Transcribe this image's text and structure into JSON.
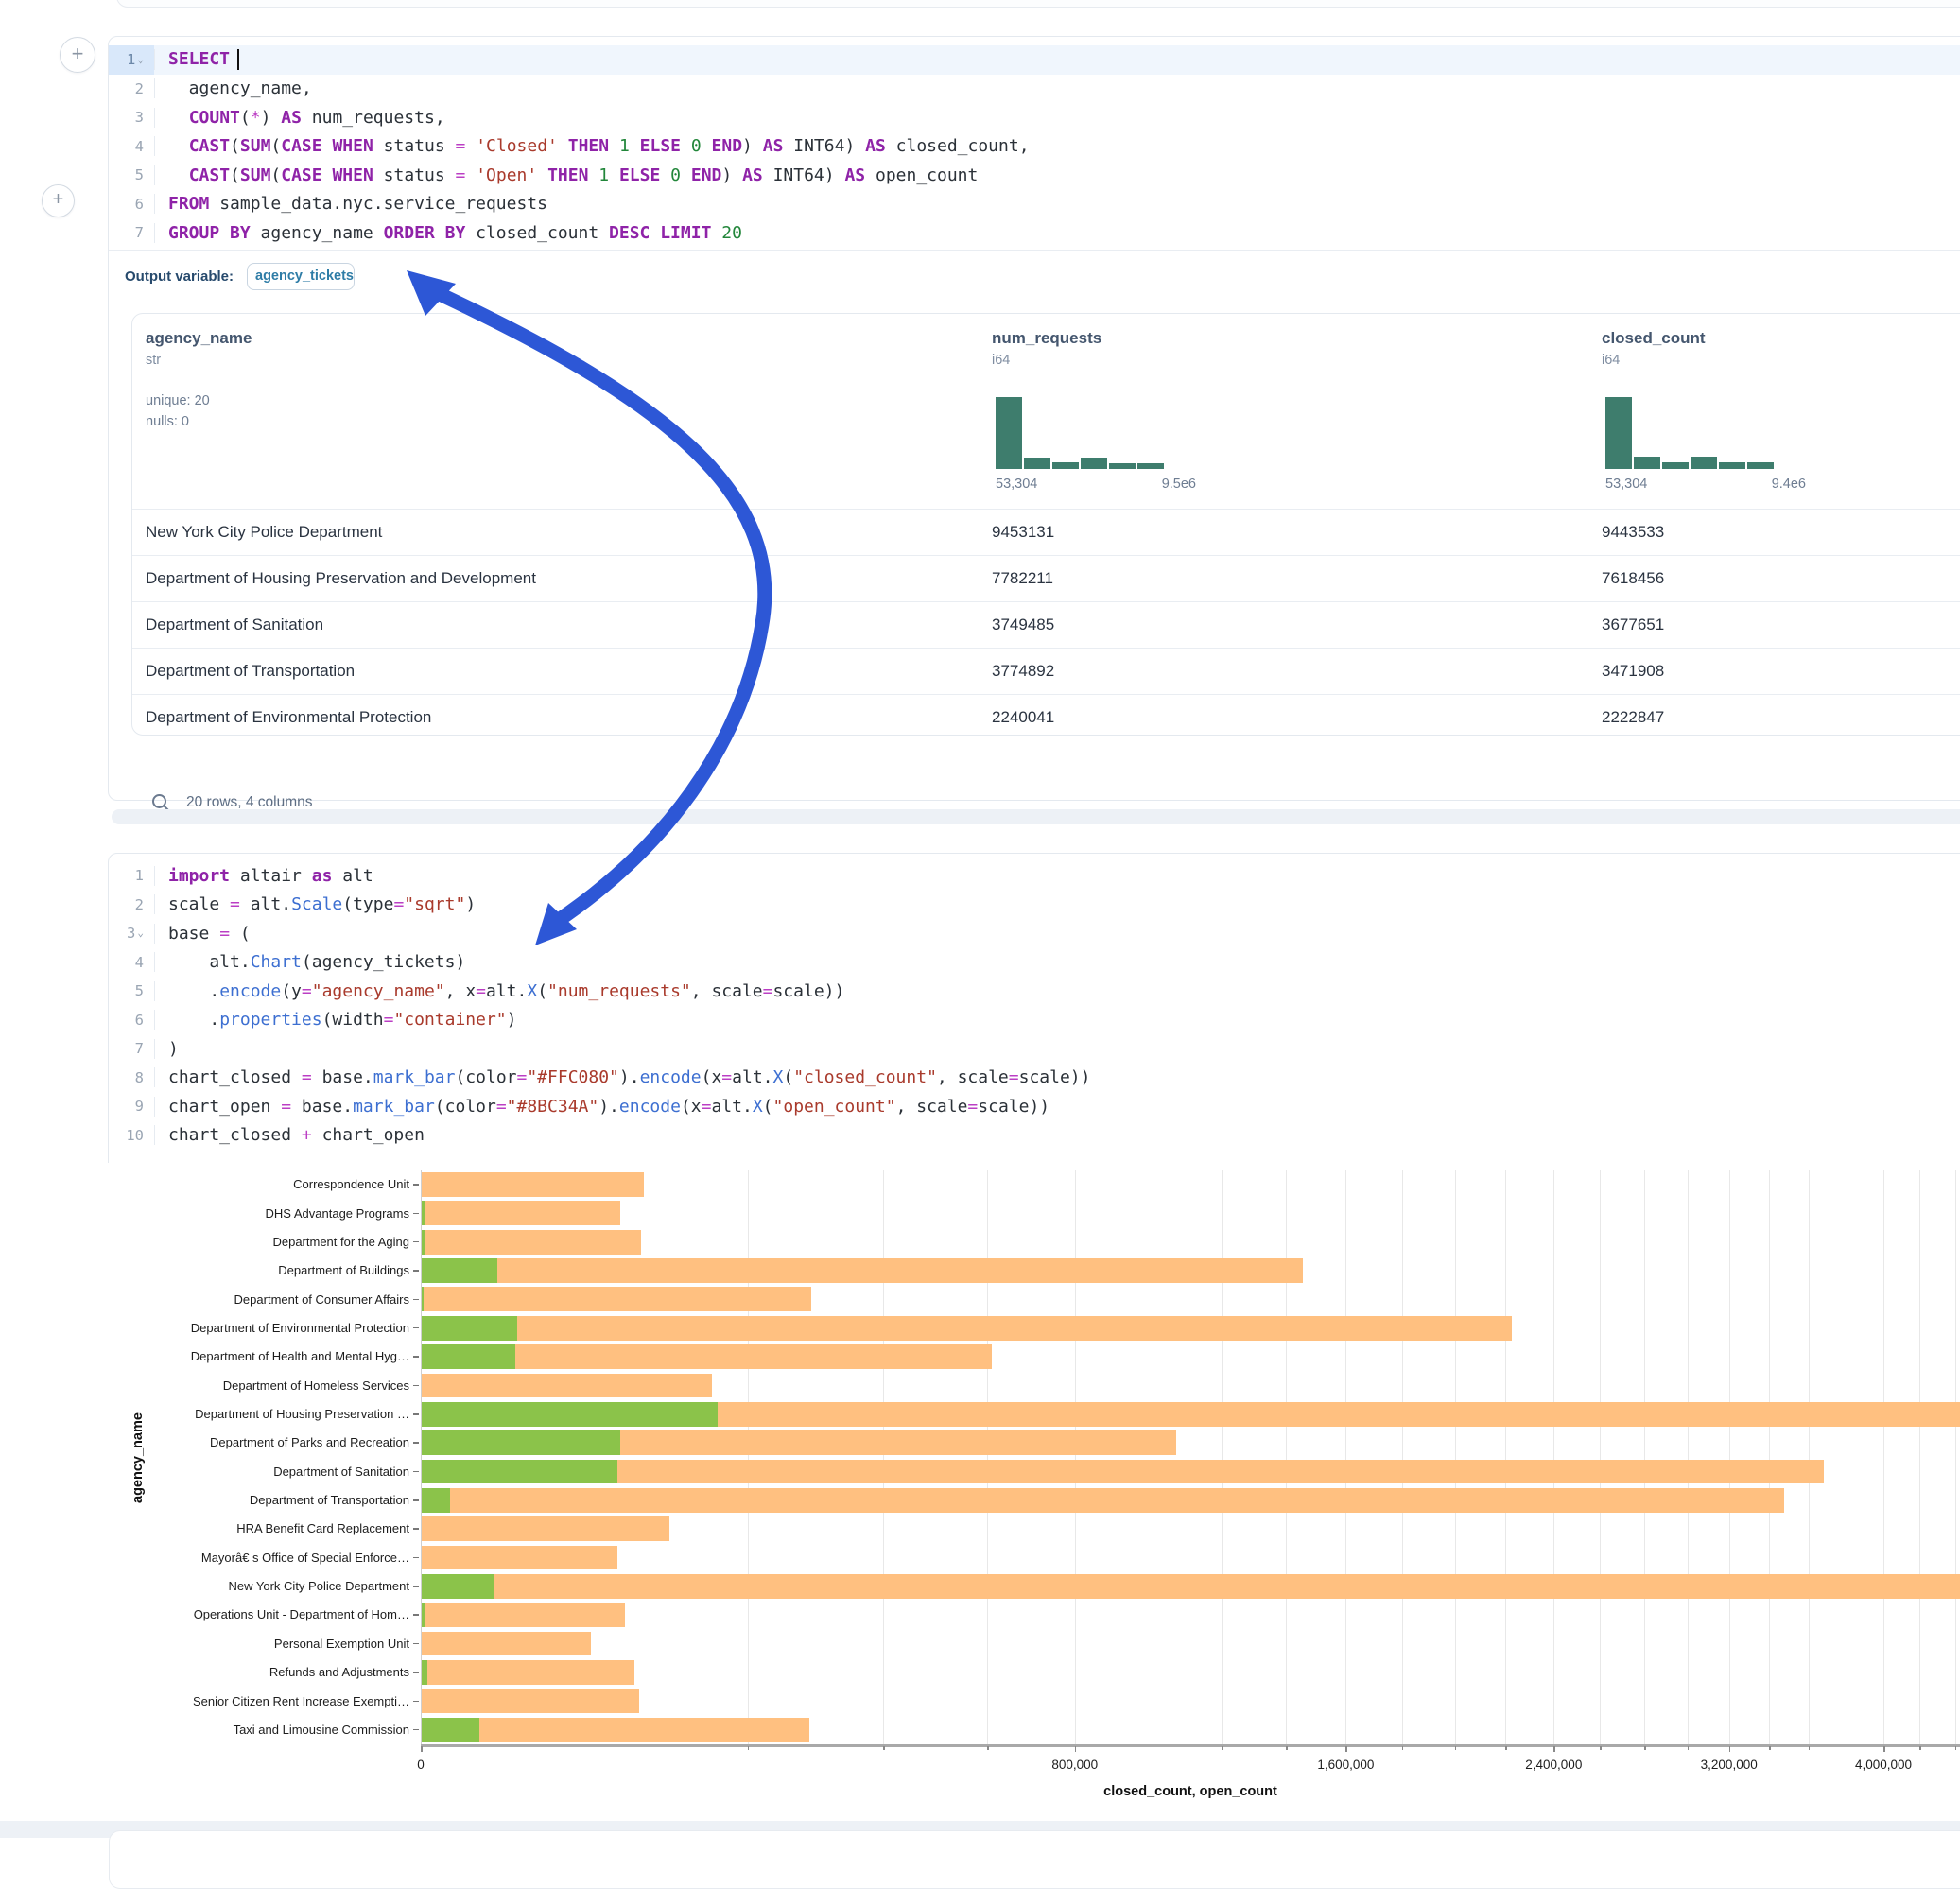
{
  "colors": {
    "arrow": "#2d57d6",
    "bar_closed": "#FFC080",
    "bar_open": "#8BC34A",
    "hist": "#3e7d6d",
    "keyword": "#8f23a8",
    "string": "#a93a2c",
    "number": "#22863a",
    "operator": "#bb3ec4",
    "function": "#3d6fd1"
  },
  "sql_cell": {
    "lines": [
      {
        "n": "1",
        "chev": true,
        "active": true,
        "cursor": true,
        "segments": [
          [
            "SELECT",
            "kw"
          ]
        ]
      },
      {
        "n": "2",
        "segments": [
          [
            "  agency_name,",
            "pl"
          ]
        ]
      },
      {
        "n": "3",
        "segments": [
          [
            "  ",
            "pl"
          ],
          [
            "COUNT",
            "kw"
          ],
          [
            "(",
            "pl"
          ],
          [
            "*",
            "op"
          ],
          [
            ") ",
            "pl"
          ],
          [
            "AS",
            "kw"
          ],
          [
            " num_requests,",
            "pl"
          ]
        ]
      },
      {
        "n": "4",
        "segments": [
          [
            "  ",
            "pl"
          ],
          [
            "CAST",
            "kw"
          ],
          [
            "(",
            "pl"
          ],
          [
            "SUM",
            "kw"
          ],
          [
            "(",
            "pl"
          ],
          [
            "CASE",
            "kw"
          ],
          [
            " ",
            "pl"
          ],
          [
            "WHEN",
            "kw"
          ],
          [
            " status ",
            "pl"
          ],
          [
            "=",
            "op"
          ],
          [
            " ",
            "pl"
          ],
          [
            "'Closed'",
            "str"
          ],
          [
            " ",
            "pl"
          ],
          [
            "THEN",
            "kw"
          ],
          [
            " ",
            "pl"
          ],
          [
            "1",
            "num"
          ],
          [
            " ",
            "pl"
          ],
          [
            "ELSE",
            "kw"
          ],
          [
            " ",
            "pl"
          ],
          [
            "0",
            "num"
          ],
          [
            " ",
            "pl"
          ],
          [
            "END",
            "kw"
          ],
          [
            ") ",
            "pl"
          ],
          [
            "AS",
            "kw"
          ],
          [
            " INT64) ",
            "pl"
          ],
          [
            "AS",
            "kw"
          ],
          [
            " closed_count,",
            "pl"
          ]
        ]
      },
      {
        "n": "5",
        "segments": [
          [
            "  ",
            "pl"
          ],
          [
            "CAST",
            "kw"
          ],
          [
            "(",
            "pl"
          ],
          [
            "SUM",
            "kw"
          ],
          [
            "(",
            "pl"
          ],
          [
            "CASE",
            "kw"
          ],
          [
            " ",
            "pl"
          ],
          [
            "WHEN",
            "kw"
          ],
          [
            " status ",
            "pl"
          ],
          [
            "=",
            "op"
          ],
          [
            " ",
            "pl"
          ],
          [
            "'Open'",
            "str"
          ],
          [
            " ",
            "pl"
          ],
          [
            "THEN",
            "kw"
          ],
          [
            " ",
            "pl"
          ],
          [
            "1",
            "num"
          ],
          [
            " ",
            "pl"
          ],
          [
            "ELSE",
            "kw"
          ],
          [
            " ",
            "pl"
          ],
          [
            "0",
            "num"
          ],
          [
            " ",
            "pl"
          ],
          [
            "END",
            "kw"
          ],
          [
            ") ",
            "pl"
          ],
          [
            "AS",
            "kw"
          ],
          [
            " INT64) ",
            "pl"
          ],
          [
            "AS",
            "kw"
          ],
          [
            " open_count",
            "pl"
          ]
        ]
      },
      {
        "n": "6",
        "segments": [
          [
            "FROM",
            "kw"
          ],
          [
            " sample_data.nyc.service_requests",
            "pl"
          ]
        ]
      },
      {
        "n": "7",
        "segments": [
          [
            "GROUP BY",
            "kw"
          ],
          [
            " agency_name ",
            "pl"
          ],
          [
            "ORDER BY",
            "kw"
          ],
          [
            " closed_count ",
            "pl"
          ],
          [
            "DESC",
            "kw"
          ],
          [
            " ",
            "pl"
          ],
          [
            "LIMIT",
            "kw"
          ],
          [
            " ",
            "pl"
          ],
          [
            "20",
            "num"
          ]
        ]
      }
    ],
    "output_label": "Output variable:",
    "output_variable": "agency_tickets"
  },
  "table": {
    "columns": [
      {
        "name": "agency_name",
        "type": "str",
        "stat1": "unique: 20",
        "stat2": "nulls: 0"
      },
      {
        "name": "num_requests",
        "type": "i64",
        "hist": [
          1,
          0.16,
          0.09,
          0.16,
          0.08,
          0.08
        ],
        "min_label": "53,304",
        "max_label": "9.5e6"
      },
      {
        "name": "closed_count",
        "type": "i64",
        "hist": [
          1,
          0.17,
          0.09,
          0.17,
          0.09,
          0.09
        ],
        "min_label": "53,304",
        "max_label": "9.4e6"
      }
    ],
    "rows": [
      [
        "New York City Police Department",
        "9453131",
        "9443533"
      ],
      [
        "Department of Housing Preservation and Development",
        "7782211",
        "7618456"
      ],
      [
        "Department of Sanitation",
        "3749485",
        "3677651"
      ],
      [
        "Department of Transportation",
        "3774892",
        "3471908"
      ],
      [
        "Department of Environmental Protection",
        "2240041",
        "2222847"
      ]
    ],
    "footer": "20 rows, 4 columns"
  },
  "python_cell": {
    "lines": [
      {
        "n": "1",
        "segments": [
          [
            "import",
            "kw"
          ],
          [
            " altair ",
            "pl"
          ],
          [
            "as",
            "kw"
          ],
          [
            " alt",
            "pl"
          ]
        ]
      },
      {
        "n": "2",
        "segments": [
          [
            "scale ",
            "pl"
          ],
          [
            "=",
            "op"
          ],
          [
            " alt.",
            "pl"
          ],
          [
            "Scale",
            "fn"
          ],
          [
            "(type",
            "pl"
          ],
          [
            "=",
            "op"
          ],
          [
            "\"sqrt\"",
            "str"
          ],
          [
            ")",
            "pl"
          ]
        ]
      },
      {
        "n": "3",
        "chev": true,
        "segments": [
          [
            "base ",
            "pl"
          ],
          [
            "=",
            "op"
          ],
          [
            " (",
            "pl"
          ]
        ]
      },
      {
        "n": "4",
        "segments": [
          [
            "    alt.",
            "pl"
          ],
          [
            "Chart",
            "fn"
          ],
          [
            "(agency_tickets)",
            "pl"
          ]
        ]
      },
      {
        "n": "5",
        "segments": [
          [
            "    .",
            "pl"
          ],
          [
            "encode",
            "fn"
          ],
          [
            "(y",
            "pl"
          ],
          [
            "=",
            "op"
          ],
          [
            "\"agency_name\"",
            "str"
          ],
          [
            ", x",
            "pl"
          ],
          [
            "=",
            "op"
          ],
          [
            "alt.",
            "pl"
          ],
          [
            "X",
            "fn"
          ],
          [
            "(",
            "pl"
          ],
          [
            "\"num_requests\"",
            "str"
          ],
          [
            ", scale",
            "pl"
          ],
          [
            "=",
            "op"
          ],
          [
            "scale))",
            "pl"
          ]
        ]
      },
      {
        "n": "6",
        "segments": [
          [
            "    .",
            "pl"
          ],
          [
            "properties",
            "fn"
          ],
          [
            "(width",
            "pl"
          ],
          [
            "=",
            "op"
          ],
          [
            "\"container\"",
            "str"
          ],
          [
            ")",
            "pl"
          ]
        ]
      },
      {
        "n": "7",
        "segments": [
          [
            ")",
            "pl"
          ]
        ]
      },
      {
        "n": "8",
        "segments": [
          [
            "chart_closed ",
            "pl"
          ],
          [
            "=",
            "op"
          ],
          [
            " base.",
            "pl"
          ],
          [
            "mark_bar",
            "fn"
          ],
          [
            "(color",
            "pl"
          ],
          [
            "=",
            "op"
          ],
          [
            "\"#FFC080\"",
            "str"
          ],
          [
            ").",
            "pl"
          ],
          [
            "encode",
            "fn"
          ],
          [
            "(x",
            "pl"
          ],
          [
            "=",
            "op"
          ],
          [
            "alt.",
            "pl"
          ],
          [
            "X",
            "fn"
          ],
          [
            "(",
            "pl"
          ],
          [
            "\"closed_count\"",
            "str"
          ],
          [
            ", scale",
            "pl"
          ],
          [
            "=",
            "op"
          ],
          [
            "scale))",
            "pl"
          ]
        ]
      },
      {
        "n": "9",
        "segments": [
          [
            "chart_open ",
            "pl"
          ],
          [
            "=",
            "op"
          ],
          [
            " base.",
            "pl"
          ],
          [
            "mark_bar",
            "fn"
          ],
          [
            "(color",
            "pl"
          ],
          [
            "=",
            "op"
          ],
          [
            "\"#8BC34A\"",
            "str"
          ],
          [
            ").",
            "pl"
          ],
          [
            "encode",
            "fn"
          ],
          [
            "(x",
            "pl"
          ],
          [
            "=",
            "op"
          ],
          [
            "alt.",
            "pl"
          ],
          [
            "X",
            "fn"
          ],
          [
            "(",
            "pl"
          ],
          [
            "\"open_count\"",
            "str"
          ],
          [
            ", scale",
            "pl"
          ],
          [
            "=",
            "op"
          ],
          [
            "scale))",
            "pl"
          ]
        ]
      },
      {
        "n": "10",
        "segments": [
          [
            "chart_closed ",
            "pl"
          ],
          [
            "+",
            "op"
          ],
          [
            " chart_open",
            "pl"
          ]
        ]
      }
    ]
  },
  "chart_data": {
    "type": "bar",
    "orientation": "horizontal",
    "x_scale": "sqrt",
    "y_axis_title": "agency_name",
    "x_axis_title": "closed_count, open_count",
    "x_ticks": [
      "0",
      "800,000",
      "1,600,000",
      "2,400,000",
      "3,200,000",
      "4,000,000"
    ],
    "x_tick_values": [
      0,
      800000,
      1600000,
      2400000,
      3200000,
      4000000
    ],
    "x_minor_step": 200000,
    "x_max_visible": 4430000,
    "series": [
      {
        "name": "closed_count",
        "color": "#FFC080"
      },
      {
        "name": "open_count",
        "color": "#8BC34A"
      }
    ],
    "agencies": [
      {
        "label": "Correspondence Unit",
        "closed": 92000,
        "open": 0
      },
      {
        "label": "DHS Advantage Programs",
        "closed": 74000,
        "open": 20
      },
      {
        "label": "Department for the Aging",
        "closed": 90000,
        "open": 20
      },
      {
        "label": "Department of Buildings",
        "closed": 1452000,
        "open": 10700
      },
      {
        "label": "Department of Consumer Affairs",
        "closed": 283000,
        "open": 10
      },
      {
        "label": "Department of Environmental Protection",
        "closed": 2222847,
        "open": 17194
      },
      {
        "label": "Department of Health and Mental Hyg…",
        "closed": 607000,
        "open": 16400
      },
      {
        "label": "Department of Homeless Services",
        "closed": 157000,
        "open": 0
      },
      {
        "label": "Department of Housing Preservation …",
        "closed": 7618456,
        "open": 163755
      },
      {
        "label": "Department of Parks and Recreation",
        "closed": 1063000,
        "open": 74000
      },
      {
        "label": "Department of Sanitation",
        "closed": 3677651,
        "open": 71834
      },
      {
        "label": "Department of Transportation",
        "closed": 3471908,
        "open": 1500
      },
      {
        "label": "HRA Benefit Card Replacement",
        "closed": 115000,
        "open": 0
      },
      {
        "label": "Mayorâ€ s Office of Special Enforce…",
        "closed": 71500,
        "open": 0
      },
      {
        "label": "New York City Police Department",
        "closed": 9443533,
        "open": 9598
      },
      {
        "label": "Operations Unit - Department of Hom…",
        "closed": 77000,
        "open": 30
      },
      {
        "label": "Personal Exemption Unit",
        "closed": 53600,
        "open": 0
      },
      {
        "label": "Refunds and Adjustments",
        "closed": 84300,
        "open": 50
      },
      {
        "label": "Senior Citizen Rent Increase Exempti…",
        "closed": 88600,
        "open": 0
      },
      {
        "label": "Taxi and Limousine Commission",
        "closed": 281500,
        "open": 6300
      }
    ]
  }
}
